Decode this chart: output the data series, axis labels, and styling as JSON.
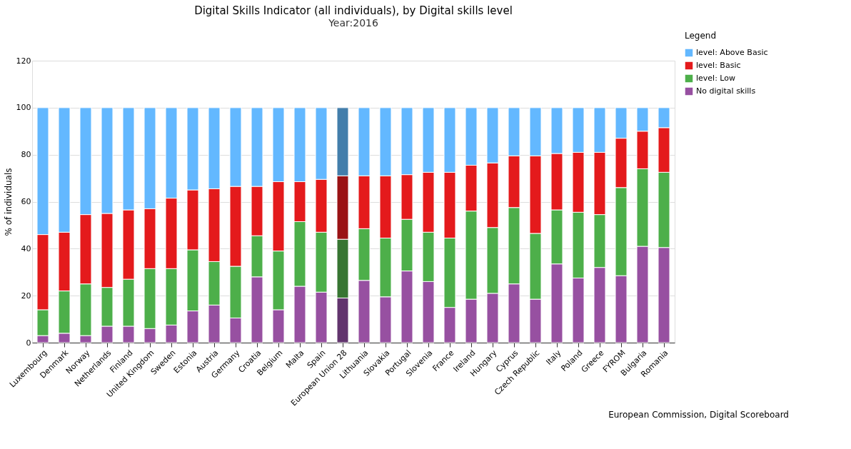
{
  "chart_data": {
    "type": "bar",
    "stacked": true,
    "title": "Digital Skills Indicator (all individuals), by Digital skills level",
    "subtitle": "Year:2016",
    "ylabel": "% of individuals",
    "legend_title": "Legend",
    "legend": "top right",
    "grid": "y",
    "ylim": [
      0,
      120
    ],
    "yticks": [
      0,
      20,
      40,
      60,
      80,
      100,
      120
    ],
    "annotations": [
      "European Commission, Digital Scoreboard"
    ],
    "categories": [
      "Luxembourg",
      "Denmark",
      "Norway",
      "Netherlands",
      "Finland",
      "United Kingdom",
      "Sweden",
      "Estonia",
      "Austria",
      "Germany",
      "Croatia",
      "Belgium",
      "Malta",
      "Spain",
      "European Union 28",
      "Lithuania",
      "Slovakia",
      "Portugal",
      "Slovenia",
      "France",
      "Ireland",
      "Hungary",
      "Cyprus",
      "Czech Republic",
      "Italy",
      "Poland",
      "Greece",
      "FYROM",
      "Bulgaria",
      "Romania"
    ],
    "series": [
      {
        "name": "No digital skills",
        "color": "#9750a1",
        "colors": [
          "#9750a1",
          "#9750a1",
          "#9750a1",
          "#9750a1",
          "#9750a1",
          "#9750a1",
          "#9750a1",
          "#9750a1",
          "#9750a1",
          "#9750a1",
          "#9750a1",
          "#9750a1",
          "#9750a1",
          "#9750a1",
          "#62346e",
          "#9750a1",
          "#9750a1",
          "#9750a1",
          "#9750a1",
          "#9750a1",
          "#9750a1",
          "#9750a1",
          "#9750a1",
          "#9750a1",
          "#9750a1",
          "#9750a1",
          "#9750a1",
          "#9750a1",
          "#9750a1",
          "#9750a1"
        ],
        "values": [
          3,
          4,
          3,
          7,
          7,
          6,
          7.5,
          13.5,
          16,
          10.5,
          28,
          14,
          24,
          21.5,
          19,
          26.5,
          19.5,
          30.5,
          26,
          15,
          18.5,
          21,
          25,
          18.5,
          33.5,
          27.5,
          32,
          28.5,
          41,
          40.5
        ]
      },
      {
        "name": "level: Low",
        "color": "#4daf4a",
        "colors": [
          "#4daf4a",
          "#4daf4a",
          "#4daf4a",
          "#4daf4a",
          "#4daf4a",
          "#4daf4a",
          "#4daf4a",
          "#4daf4a",
          "#4daf4a",
          "#4daf4a",
          "#4daf4a",
          "#4daf4a",
          "#4daf4a",
          "#4daf4a",
          "#377532",
          "#4daf4a",
          "#4daf4a",
          "#4daf4a",
          "#4daf4a",
          "#4daf4a",
          "#4daf4a",
          "#4daf4a",
          "#4daf4a",
          "#4daf4a",
          "#4daf4a",
          "#4daf4a",
          "#4daf4a",
          "#4daf4a",
          "#4daf4a",
          "#4daf4a"
        ],
        "values": [
          11,
          18,
          22,
          16.5,
          20,
          25.5,
          24,
          26,
          18.5,
          22,
          17.5,
          25,
          27.5,
          25.5,
          25,
          22,
          25,
          22,
          21,
          29.5,
          37.5,
          28,
          32.5,
          28,
          23,
          28,
          22.5,
          37.5,
          33,
          32
        ]
      },
      {
        "name": "level: Basic",
        "color": "#e41a1c",
        "colors": [
          "#e41a1c",
          "#e41a1c",
          "#e41a1c",
          "#e41a1c",
          "#e41a1c",
          "#e41a1c",
          "#e41a1c",
          "#e41a1c",
          "#e41a1c",
          "#e41a1c",
          "#e41a1c",
          "#e41a1c",
          "#e41a1c",
          "#e41a1c",
          "#9a1214",
          "#e41a1c",
          "#e41a1c",
          "#e41a1c",
          "#e41a1c",
          "#e41a1c",
          "#e41a1c",
          "#e41a1c",
          "#e41a1c",
          "#e41a1c",
          "#e41a1c",
          "#e41a1c",
          "#e41a1c",
          "#e41a1c",
          "#e41a1c",
          "#e41a1c"
        ],
        "values": [
          32,
          25,
          29.5,
          31.5,
          29.5,
          25.5,
          30,
          25.5,
          31,
          34,
          21,
          29.5,
          17,
          22.5,
          27,
          22.5,
          26.5,
          19,
          25.5,
          28,
          19.5,
          27.5,
          22,
          33,
          24,
          25.5,
          26.5,
          21,
          16,
          19
        ]
      },
      {
        "name": "level: Above Basic",
        "color": "#63b8ff",
        "colors": [
          "#63b8ff",
          "#63b8ff",
          "#63b8ff",
          "#63b8ff",
          "#63b8ff",
          "#63b8ff",
          "#63b8ff",
          "#63b8ff",
          "#63b8ff",
          "#63b8ff",
          "#63b8ff",
          "#63b8ff",
          "#63b8ff",
          "#63b8ff",
          "#437eab",
          "#63b8ff",
          "#63b8ff",
          "#63b8ff",
          "#63b8ff",
          "#63b8ff",
          "#63b8ff",
          "#63b8ff",
          "#63b8ff",
          "#63b8ff",
          "#63b8ff",
          "#63b8ff",
          "#63b8ff",
          "#63b8ff",
          "#63b8ff",
          "#63b8ff"
        ],
        "values": [
          54,
          53,
          45.5,
          45,
          43.5,
          43,
          38.5,
          35,
          34.5,
          33.5,
          33.5,
          31.5,
          31.5,
          30.5,
          29,
          29,
          29,
          28.5,
          27.5,
          27.5,
          24.5,
          23.5,
          20.5,
          20.5,
          19.5,
          19,
          19,
          13,
          10,
          8.5
        ]
      }
    ]
  }
}
